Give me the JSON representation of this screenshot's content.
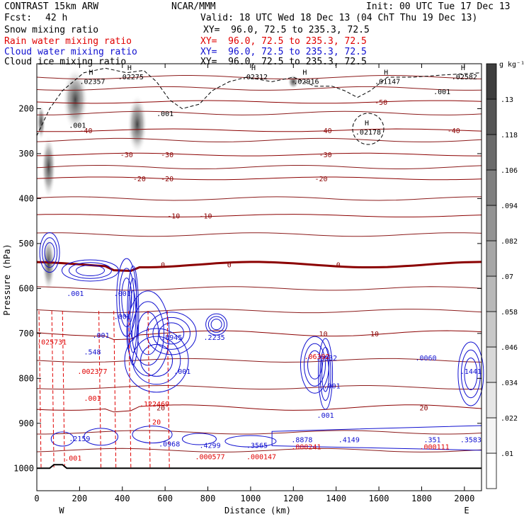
{
  "header": {
    "model": "CONTRAST 15km ARW",
    "center": "NCAR/MMM",
    "init": "Init: 00 UTC Tue 17 Dec 13",
    "fcst_label": "Fcst:",
    "fcst_value": "42 h",
    "valid": "Valid: 18 UTC Wed 18 Dec 13 (04 ChT Thu 19 Dec 13)"
  },
  "fields": [
    {
      "name": "Snow mixing ratio",
      "xy": "XY=  96.0, 72.5 to 235.3, 72.5",
      "color": "#000000"
    },
    {
      "name": "Rain water mixing ratio",
      "xy": "XY=  96.0, 72.5 to 235.3, 72.5",
      "color": "#e00000"
    },
    {
      "name": "Cloud water mixing ratio",
      "xy": "XY=  96.0, 72.5 to 235.3, 72.5",
      "color": "#1010d0"
    },
    {
      "name": "Cloud ice mixing ratio",
      "xy": "XY=  96.0, 72.5 to 235.3, 72.5",
      "color": "#000000"
    }
  ],
  "chart_data": {
    "type": "heatmap",
    "xlabel": "Distance (km)",
    "ylabel": "Pressure (hPa)",
    "xlim": [
      0,
      2080
    ],
    "ylim": [
      1050,
      100
    ],
    "x_ticks": [
      0,
      200,
      400,
      600,
      800,
      1000,
      1200,
      1400,
      1600,
      1800,
      2000
    ],
    "y_ticks": [
      200,
      300,
      400,
      500,
      600,
      700,
      800,
      900,
      1000
    ],
    "left_end_label": "W",
    "right_end_label": "E",
    "colorbar": {
      "unit": "g kg⁻¹",
      "labels": [
        ".01",
        ".022",
        ".034",
        ".046",
        ".058",
        ".07",
        ".082",
        ".094",
        ".106",
        ".118",
        ".13"
      ],
      "colors": [
        "#ffffff",
        "#f4f4f4",
        "#e6e6e6",
        "#d8d8d8",
        "#c8c8c8",
        "#b8b8b8",
        "#a6a6a6",
        "#939393",
        "#7f7f7f",
        "#6a6a6a",
        "#555555",
        "#3e3e3e"
      ]
    },
    "temperature_contours": [
      {
        "label": "-50",
        "p": 185,
        "label_x": [
          1610
        ]
      },
      {
        "label": "-40",
        "p": 248,
        "label_x": [
          230,
          1350,
          1950
        ]
      },
      {
        "label": "-30",
        "p": 302,
        "label_x": [
          420,
          610,
          1350
        ]
      },
      {
        "label": "-20",
        "p": 355,
        "label_x": [
          480,
          610,
          1330
        ]
      },
      {
        "label": "-10",
        "p": 438,
        "label_x": [
          640,
          790
        ]
      },
      {
        "label": "0",
        "p": 547,
        "label_x": [
          590,
          900,
          1410
        ]
      },
      {
        "label": "10",
        "p": 700,
        "label_x": [
          1340,
          1580
        ]
      },
      {
        "label": "20",
        "p": 865,
        "label_x": [
          580,
          1810
        ]
      }
    ],
    "snow_maxima": [
      {
        "x": 190,
        "p": 238,
        "label": ".001"
      },
      {
        "x": 600,
        "p": 212,
        "label": ".001"
      },
      {
        "x": 1895,
        "p": 163,
        "label": ".001"
      }
    ],
    "cloud_ice_maxima": [
      {
        "x": 260,
        "p": 140,
        "label": ".02357"
      },
      {
        "x": 440,
        "p": 130,
        "label": ".02275"
      },
      {
        "x": 1020,
        "p": 130,
        "label": ".02312"
      },
      {
        "x": 1260,
        "p": 140,
        "label": ".02916"
      },
      {
        "x": 1640,
        "p": 140,
        "label": ".01147"
      },
      {
        "x": 2000,
        "p": 130,
        "label": ".02582"
      },
      {
        "x": 1550,
        "p": 253,
        "label": ".02178"
      }
    ],
    "cloud_water_maxima": [
      {
        "x": 180,
        "p": 612,
        "label": ".001"
      },
      {
        "x": 400,
        "p": 612,
        "label": ".001"
      },
      {
        "x": 400,
        "p": 663,
        "label": ".001"
      },
      {
        "x": 300,
        "p": 705,
        "label": ".001"
      },
      {
        "x": 260,
        "p": 742,
        "label": ".548"
      },
      {
        "x": 630,
        "p": 710,
        "label": ".8945"
      },
      {
        "x": 830,
        "p": 710,
        "label": ".2235"
      },
      {
        "x": 1355,
        "p": 755,
        "label": ".0932"
      },
      {
        "x": 1820,
        "p": 755,
        "label": ".0060"
      },
      {
        "x": 1380,
        "p": 818,
        "label": ".001"
      },
      {
        "x": 1350,
        "p": 883,
        "label": ".001"
      },
      {
        "x": 200,
        "p": 935,
        "label": ".2159"
      },
      {
        "x": 620,
        "p": 947,
        "label": ".0968"
      },
      {
        "x": 810,
        "p": 950,
        "label": ".4299"
      },
      {
        "x": 1030,
        "p": 950,
        "label": ".3565"
      },
      {
        "x": 1240,
        "p": 937,
        "label": ".8878"
      },
      {
        "x": 1460,
        "p": 937,
        "label": ".4149"
      },
      {
        "x": 1850,
        "p": 937,
        "label": ".351"
      },
      {
        "x": 2030,
        "p": 937,
        "label": ".3583"
      },
      {
        "x": 2030,
        "p": 785,
        "label": ".1441"
      },
      {
        "x": 680,
        "p": 785,
        "label": ".001"
      }
    ],
    "rain_maxima": [
      {
        "x": 70,
        "p": 720,
        "label": ".025731"
      },
      {
        "x": 260,
        "p": 785,
        "label": ".002377"
      },
      {
        "x": 260,
        "p": 845,
        "label": ".001"
      },
      {
        "x": 550,
        "p": 858,
        "label": ".122469"
      },
      {
        "x": 560,
        "p": 898,
        "label": "20"
      },
      {
        "x": 1310,
        "p": 752,
        "label": ".06392"
      },
      {
        "x": 2040,
        "p": 770,
        "label": ""
      },
      {
        "x": 170,
        "p": 978,
        "label": ".001"
      },
      {
        "x": 810,
        "p": 975,
        "label": ".000577"
      },
      {
        "x": 1050,
        "p": 975,
        "label": ".000147"
      },
      {
        "x": 1260,
        "p": 953,
        "label": ".000241"
      },
      {
        "x": 1860,
        "p": 953,
        "label": ".000111"
      }
    ]
  }
}
